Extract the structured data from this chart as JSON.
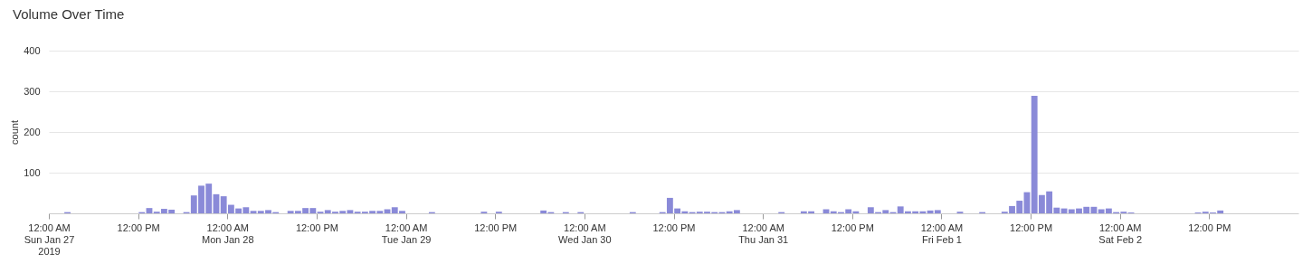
{
  "chart_data": {
    "type": "bar",
    "title": "Volume Over Time",
    "ylabel": "count",
    "x": [
      "2019-01-27T02:30",
      "2019-01-27T12:30",
      "2019-01-27T13:30",
      "2019-01-27T14:30",
      "2019-01-27T15:30",
      "2019-01-27T16:30",
      "2019-01-27T18:30",
      "2019-01-27T19:30",
      "2019-01-27T20:30",
      "2019-01-27T21:30",
      "2019-01-27T22:30",
      "2019-01-27T23:30",
      "2019-01-28T00:30",
      "2019-01-28T01:30",
      "2019-01-28T02:30",
      "2019-01-28T03:30",
      "2019-01-28T04:30",
      "2019-01-28T05:30",
      "2019-01-28T06:30",
      "2019-01-28T08:30",
      "2019-01-28T09:30",
      "2019-01-28T10:30",
      "2019-01-28T11:30",
      "2019-01-28T12:30",
      "2019-01-28T13:30",
      "2019-01-28T14:30",
      "2019-01-28T15:30",
      "2019-01-28T16:30",
      "2019-01-28T17:30",
      "2019-01-28T18:30",
      "2019-01-28T19:30",
      "2019-01-28T20:30",
      "2019-01-28T21:30",
      "2019-01-28T22:30",
      "2019-01-28T23:30",
      "2019-01-29T03:30",
      "2019-01-29T10:30",
      "2019-01-29T12:30",
      "2019-01-29T18:30",
      "2019-01-29T19:30",
      "2019-01-29T21:30",
      "2019-01-29T23:30",
      "2019-01-30T06:30",
      "2019-01-30T10:30",
      "2019-01-30T11:30",
      "2019-01-30T12:30",
      "2019-01-30T13:30",
      "2019-01-30T14:30",
      "2019-01-30T15:30",
      "2019-01-30T16:30",
      "2019-01-30T17:30",
      "2019-01-30T18:30",
      "2019-01-30T19:30",
      "2019-01-30T20:30",
      "2019-01-31T02:30",
      "2019-01-31T05:30",
      "2019-01-31T06:30",
      "2019-01-31T08:30",
      "2019-01-31T09:30",
      "2019-01-31T10:30",
      "2019-01-31T11:30",
      "2019-01-31T12:30",
      "2019-01-31T14:30",
      "2019-01-31T15:30",
      "2019-01-31T16:30",
      "2019-01-31T17:30",
      "2019-01-31T18:30",
      "2019-01-31T19:30",
      "2019-01-31T20:30",
      "2019-01-31T21:30",
      "2019-01-31T22:30",
      "2019-01-31T23:30",
      "2019-02-01T02:30",
      "2019-02-01T05:30",
      "2019-02-01T08:30",
      "2019-02-01T09:30",
      "2019-02-01T10:30",
      "2019-02-01T11:30",
      "2019-02-01T12:30",
      "2019-02-01T13:30",
      "2019-02-01T14:30",
      "2019-02-01T15:30",
      "2019-02-01T16:30",
      "2019-02-01T17:30",
      "2019-02-01T18:30",
      "2019-02-01T19:30",
      "2019-02-01T20:30",
      "2019-02-01T21:30",
      "2019-02-01T22:30",
      "2019-02-01T23:30",
      "2019-02-02T00:30",
      "2019-02-02T01:30",
      "2019-02-02T10:30",
      "2019-02-02T11:30",
      "2019-02-02T12:30",
      "2019-02-02T13:30"
    ],
    "series": [
      {
        "color": "#8a8ad8",
        "values": [
          3,
          3,
          13,
          4,
          11,
          9,
          3,
          44,
          68,
          73,
          47,
          42,
          21,
          12,
          15,
          6,
          6,
          8,
          3,
          6,
          6,
          13,
          13,
          4,
          8,
          4,
          6,
          8,
          4,
          4,
          6,
          6,
          10,
          15,
          6,
          3,
          4,
          4,
          7,
          3,
          3,
          3,
          3,
          3,
          38,
          12,
          5,
          3,
          4,
          4,
          3,
          3,
          5,
          8,
          3,
          5,
          5,
          10,
          5,
          3,
          10,
          5,
          15,
          3,
          8,
          3,
          17,
          5,
          5,
          5,
          7,
          8,
          4,
          3,
          4,
          18,
          31,
          52,
          289,
          45,
          54,
          14,
          12,
          10,
          12,
          16,
          16,
          10,
          12,
          3,
          4,
          2,
          2,
          4,
          2,
          7
        ]
      }
    ],
    "xlim": [
      "2019-01-27T00:00",
      "2019-02-03T00:00"
    ],
    "xticks": [
      {
        "value": "2019-01-27T00:00",
        "label": "12:00 AM\nSun Jan 27\n2019"
      },
      {
        "value": "2019-01-27T12:00",
        "label": "12:00 PM"
      },
      {
        "value": "2019-01-28T00:00",
        "label": "12:00 AM\nMon Jan 28"
      },
      {
        "value": "2019-01-28T12:00",
        "label": "12:00 PM"
      },
      {
        "value": "2019-01-29T00:00",
        "label": "12:00 AM\nTue Jan 29"
      },
      {
        "value": "2019-01-29T12:00",
        "label": "12:00 PM"
      },
      {
        "value": "2019-01-30T00:00",
        "label": "12:00 AM\nWed Jan 30"
      },
      {
        "value": "2019-01-30T12:00",
        "label": "12:00 PM"
      },
      {
        "value": "2019-01-31T00:00",
        "label": "12:00 AM\nThu Jan 31"
      },
      {
        "value": "2019-01-31T12:00",
        "label": "12:00 PM"
      },
      {
        "value": "2019-02-01T00:00",
        "label": "12:00 AM\nFri Feb 1"
      },
      {
        "value": "2019-02-01T12:00",
        "label": "12:00 PM"
      },
      {
        "value": "2019-02-02T00:00",
        "label": "12:00 AM\nSat Feb 2"
      },
      {
        "value": "2019-02-02T12:00",
        "label": "12:00 PM"
      }
    ],
    "ylim": [
      0,
      400
    ],
    "yticks": [
      100,
      200,
      300,
      400
    ],
    "grid": "y"
  }
}
